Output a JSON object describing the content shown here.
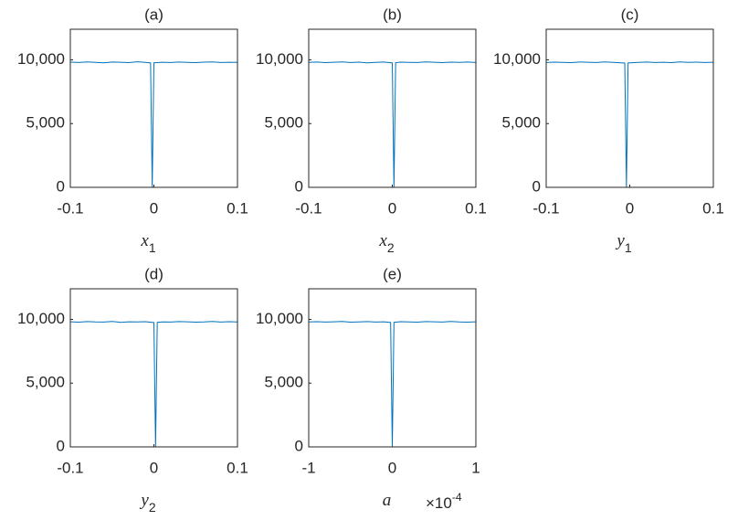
{
  "chart_data": [
    {
      "type": "line",
      "title": "(a)",
      "xlabel": {
        "text": "x",
        "subscript": "1"
      },
      "x": [
        -0.1,
        -0.09,
        -0.08,
        -0.07,
        -0.06,
        -0.05,
        -0.04,
        -0.03,
        -0.02,
        -0.01,
        -0.004,
        -0.002,
        0,
        0.01,
        0.02,
        0.03,
        0.04,
        0.05,
        0.06,
        0.07,
        0.08,
        0.09,
        0.1
      ],
      "series": [
        {
          "color": "#0072bd",
          "values": [
            9820,
            9790,
            9840,
            9800,
            9770,
            9830,
            9810,
            9780,
            9850,
            9800,
            9760,
            0,
            9770,
            9810,
            9790,
            9830,
            9800,
            9780,
            9820,
            9840,
            9790,
            9810,
            9800
          ]
        }
      ],
      "xlim": [
        -0.1,
        0.1
      ],
      "ylim": [
        0,
        12400
      ],
      "xticks": [
        -0.1,
        0,
        0.1
      ],
      "yticks": [
        0,
        {
          "value": 5000,
          "label": "5,000"
        },
        {
          "value": 10000,
          "label": "10,000"
        }
      ]
    },
    {
      "type": "line",
      "title": "(b)",
      "xlabel": {
        "text": "x",
        "subscript": "2"
      },
      "x": [
        -0.1,
        -0.09,
        -0.08,
        -0.07,
        -0.06,
        -0.05,
        -0.04,
        -0.03,
        -0.02,
        -0.01,
        0,
        0.002,
        0.004,
        0.01,
        0.02,
        0.03,
        0.04,
        0.05,
        0.06,
        0.07,
        0.08,
        0.09,
        0.1
      ],
      "series": [
        {
          "color": "#0072bd",
          "values": [
            9800,
            9830,
            9780,
            9810,
            9840,
            9790,
            9820,
            9770,
            9800,
            9830,
            9760,
            0,
            9780,
            9820,
            9800,
            9790,
            9840,
            9810,
            9780,
            9820,
            9800,
            9830,
            9790
          ]
        }
      ],
      "xlim": [
        -0.1,
        0.1
      ],
      "ylim": [
        0,
        12400
      ],
      "xticks": [
        -0.1,
        0,
        0.1
      ],
      "yticks": [
        0,
        {
          "value": 5000,
          "label": "5,000"
        },
        {
          "value": 10000,
          "label": "10,000"
        }
      ]
    },
    {
      "type": "line",
      "title": "(c)",
      "xlabel": {
        "text": "y",
        "subscript": "1"
      },
      "x": [
        -0.1,
        -0.09,
        -0.08,
        -0.07,
        -0.06,
        -0.05,
        -0.04,
        -0.03,
        -0.02,
        -0.01,
        -0.006,
        -0.004,
        -0.002,
        0.01,
        0.02,
        0.03,
        0.04,
        0.05,
        0.06,
        0.07,
        0.08,
        0.09,
        0.1
      ],
      "series": [
        {
          "color": "#0072bd",
          "values": [
            9790,
            9820,
            9800,
            9780,
            9830,
            9810,
            9790,
            9840,
            9800,
            9770,
            9750,
            0,
            9760,
            9800,
            9830,
            9790,
            9810,
            9780,
            9840,
            9800,
            9820,
            9790,
            9810
          ]
        }
      ],
      "xlim": [
        -0.1,
        0.1
      ],
      "ylim": [
        0,
        12400
      ],
      "xticks": [
        -0.1,
        0,
        0.1
      ],
      "yticks": [
        0,
        {
          "value": 5000,
          "label": "5,000"
        },
        {
          "value": 10000,
          "label": "10,000"
        }
      ]
    },
    {
      "type": "line",
      "title": "(d)",
      "xlabel": {
        "text": "y",
        "subscript": "2"
      },
      "x": [
        -0.1,
        -0.09,
        -0.08,
        -0.07,
        -0.06,
        -0.05,
        -0.04,
        -0.03,
        -0.02,
        -0.01,
        0,
        0.002,
        0.004,
        0.01,
        0.02,
        0.03,
        0.04,
        0.05,
        0.06,
        0.07,
        0.08,
        0.09,
        0.1
      ],
      "series": [
        {
          "color": "#0072bd",
          "values": [
            9810,
            9780,
            9830,
            9800,
            9790,
            9840,
            9770,
            9810,
            9800,
            9820,
            9750,
            0,
            9770,
            9800,
            9790,
            9830,
            9810,
            9780,
            9800,
            9840,
            9790,
            9820,
            9800
          ]
        }
      ],
      "xlim": [
        -0.1,
        0.1
      ],
      "ylim": [
        0,
        12400
      ],
      "xticks": [
        -0.1,
        0,
        0.1
      ],
      "yticks": [
        0,
        {
          "value": 5000,
          "label": "5,000"
        },
        {
          "value": 10000,
          "label": "10,000"
        }
      ]
    },
    {
      "type": "line",
      "title": "(e)",
      "xlabel": {
        "text": "a"
      },
      "x_exponent": {
        "base": "×10",
        "power": "-4"
      },
      "x": [
        -1,
        -0.9,
        -0.8,
        -0.7,
        -0.6,
        -0.5,
        -0.4,
        -0.3,
        -0.2,
        -0.1,
        -0.02,
        0,
        0.02,
        0.1,
        0.2,
        0.3,
        0.4,
        0.5,
        0.6,
        0.7,
        0.8,
        0.9,
        1
      ],
      "series": [
        {
          "color": "#0072bd",
          "values": [
            9800,
            9820,
            9790,
            9810,
            9840,
            9780,
            9800,
            9830,
            9790,
            9810,
            9760,
            0,
            9770,
            9820,
            9800,
            9780,
            9830,
            9810,
            9790,
            9840,
            9800,
            9780,
            9810
          ]
        }
      ],
      "xlim": [
        -1,
        1
      ],
      "ylim": [
        0,
        12400
      ],
      "xticks": [
        -1,
        0,
        1
      ],
      "yticks": [
        0,
        {
          "value": 5000,
          "label": "5,000"
        },
        {
          "value": 10000,
          "label": "10,000"
        }
      ]
    }
  ]
}
